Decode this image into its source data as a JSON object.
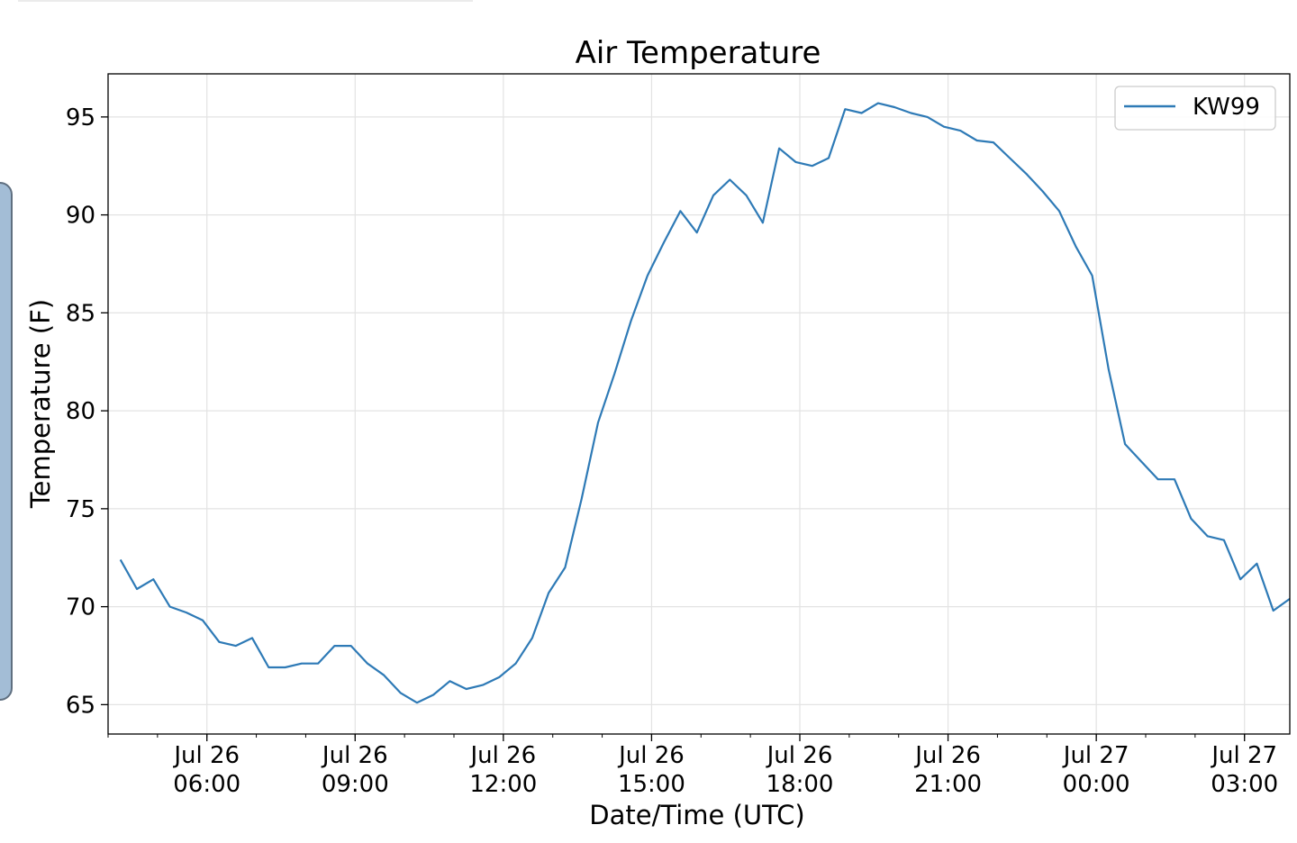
{
  "chart_data": {
    "type": "line",
    "title": "Air Temperature",
    "xlabel": "Date/Time (UTC)",
    "ylabel": "Temperature (F)",
    "xlim": [
      "2021-07-26T04:00",
      "2021-07-27T03:55"
    ],
    "ylim": [
      63.5,
      97.2
    ],
    "grid": true,
    "legend_position": "upper right",
    "x_tick_labels": [
      {
        "time": "2021-07-26T06:00",
        "line1": "Jul 26",
        "line2": "06:00"
      },
      {
        "time": "2021-07-26T09:00",
        "line1": "Jul 26",
        "line2": "09:00"
      },
      {
        "time": "2021-07-26T12:00",
        "line1": "Jul 26",
        "line2": "12:00"
      },
      {
        "time": "2021-07-26T15:00",
        "line1": "Jul 26",
        "line2": "15:00"
      },
      {
        "time": "2021-07-26T18:00",
        "line1": "Jul 26",
        "line2": "18:00"
      },
      {
        "time": "2021-07-26T21:00",
        "line1": "Jul 26",
        "line2": "21:00"
      },
      {
        "time": "2021-07-27T00:00",
        "line1": "Jul 27",
        "line2": "00:00"
      },
      {
        "time": "2021-07-27T03:00",
        "line1": "Jul 27",
        "line2": "03:00"
      }
    ],
    "y_ticks": [
      65,
      70,
      75,
      80,
      85,
      90,
      95
    ],
    "series": [
      {
        "name": "KW99",
        "color": "#2e7ab6",
        "x": [
          "2021-07-26T04:15",
          "2021-07-26T04:35",
          "2021-07-26T04:55",
          "2021-07-26T05:15",
          "2021-07-26T05:35",
          "2021-07-26T05:55",
          "2021-07-26T06:15",
          "2021-07-26T06:35",
          "2021-07-26T06:55",
          "2021-07-26T07:15",
          "2021-07-26T07:35",
          "2021-07-26T07:55",
          "2021-07-26T08:15",
          "2021-07-26T08:35",
          "2021-07-26T08:55",
          "2021-07-26T09:15",
          "2021-07-26T09:35",
          "2021-07-26T09:55",
          "2021-07-26T10:15",
          "2021-07-26T10:35",
          "2021-07-26T10:55",
          "2021-07-26T11:15",
          "2021-07-26T11:35",
          "2021-07-26T11:55",
          "2021-07-26T12:15",
          "2021-07-26T12:35",
          "2021-07-26T12:55",
          "2021-07-26T13:15",
          "2021-07-26T13:35",
          "2021-07-26T13:55",
          "2021-07-26T14:15",
          "2021-07-26T14:35",
          "2021-07-26T14:55",
          "2021-07-26T15:15",
          "2021-07-26T15:35",
          "2021-07-26T15:55",
          "2021-07-26T16:15",
          "2021-07-26T16:35",
          "2021-07-26T16:55",
          "2021-07-26T17:15",
          "2021-07-26T17:35",
          "2021-07-26T17:55",
          "2021-07-26T18:15",
          "2021-07-26T18:35",
          "2021-07-26T18:55",
          "2021-07-26T19:15",
          "2021-07-26T19:35",
          "2021-07-26T19:55",
          "2021-07-26T20:15",
          "2021-07-26T20:35",
          "2021-07-26T20:55",
          "2021-07-26T21:15",
          "2021-07-26T21:35",
          "2021-07-26T21:55",
          "2021-07-26T22:15",
          "2021-07-26T22:35",
          "2021-07-26T22:55",
          "2021-07-26T23:15",
          "2021-07-26T23:35",
          "2021-07-26T23:55",
          "2021-07-27T00:15",
          "2021-07-27T00:35",
          "2021-07-27T00:55",
          "2021-07-27T01:15",
          "2021-07-27T01:35",
          "2021-07-27T01:55",
          "2021-07-27T02:15",
          "2021-07-27T02:35",
          "2021-07-27T02:55",
          "2021-07-27T03:15",
          "2021-07-27T03:35",
          "2021-07-27T03:55"
        ],
        "y": [
          72.4,
          70.9,
          71.4,
          70.0,
          69.7,
          69.3,
          68.2,
          68.0,
          68.4,
          66.9,
          66.9,
          67.1,
          67.1,
          68.0,
          68.0,
          67.1,
          66.5,
          65.6,
          65.1,
          65.5,
          66.2,
          65.8,
          66.0,
          66.4,
          67.1,
          68.4,
          70.7,
          72.0,
          75.5,
          79.4,
          81.9,
          84.6,
          86.9,
          88.6,
          90.2,
          89.1,
          91.0,
          91.8,
          91.0,
          89.6,
          93.4,
          92.7,
          92.5,
          92.9,
          95.4,
          95.2,
          95.7,
          95.5,
          95.2,
          95.0,
          94.5,
          94.3,
          93.8,
          93.7,
          92.9,
          92.1,
          91.2,
          90.2,
          88.4,
          86.9,
          82.1,
          78.3,
          77.4,
          76.5,
          76.5,
          74.5,
          73.6,
          73.4,
          71.4,
          72.2,
          69.8,
          70.4
        ]
      }
    ]
  }
}
